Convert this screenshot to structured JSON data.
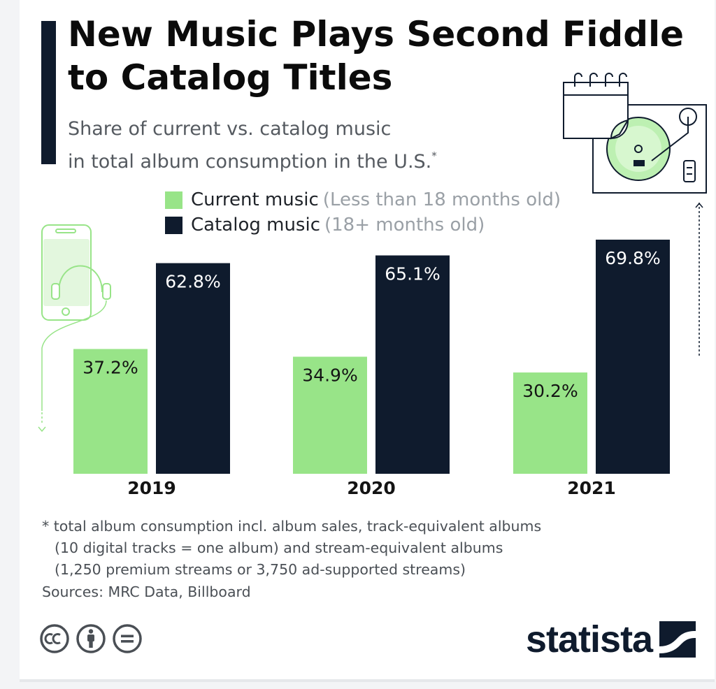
{
  "header": {
    "title": "New Music Plays Second Fiddle to Catalog Titles",
    "subtitle_line1": "Share of current vs. catalog music",
    "subtitle_line2": "in total album consumption in the U.S.",
    "subtitle_mark": "*"
  },
  "legend": {
    "current_label": "Current music",
    "current_note": "(Less than 18 months old)",
    "catalog_label": "Catalog music",
    "catalog_note": "(18+ months old)"
  },
  "colors": {
    "current": "#98e488",
    "catalog": "#0f1b2d",
    "accent_dark": "#0f1b2d"
  },
  "chart_data": {
    "type": "bar",
    "categories": [
      "2019",
      "2020",
      "2021"
    ],
    "series": [
      {
        "name": "Current music",
        "values": [
          37.2,
          34.9,
          30.2
        ]
      },
      {
        "name": "Catalog music",
        "values": [
          62.8,
          65.1,
          69.8
        ]
      }
    ],
    "value_labels": [
      [
        "37.2%",
        "34.9%",
        "30.2%"
      ],
      [
        "62.8%",
        "65.1%",
        "69.8%"
      ]
    ],
    "unit": "%",
    "ylim": [
      0,
      100
    ],
    "grid": false,
    "legend_position": "top"
  },
  "footnote": {
    "line1": "* total album consumption incl. album sales, track-equivalent albums",
    "line2": "(10 digital tracks = one album) and stream-equivalent albums",
    "line3": "(1,250 premium streams or 3,750 ad-supported streams)"
  },
  "source": "Sources: MRC Data, Billboard",
  "license_icons": [
    "cc-icon",
    "attribution-icon",
    "no-derivatives-icon"
  ],
  "brand": {
    "name": "statista"
  },
  "decorations": [
    "smartphone-headphones-icon",
    "calendar-icon",
    "turntable-icon"
  ]
}
